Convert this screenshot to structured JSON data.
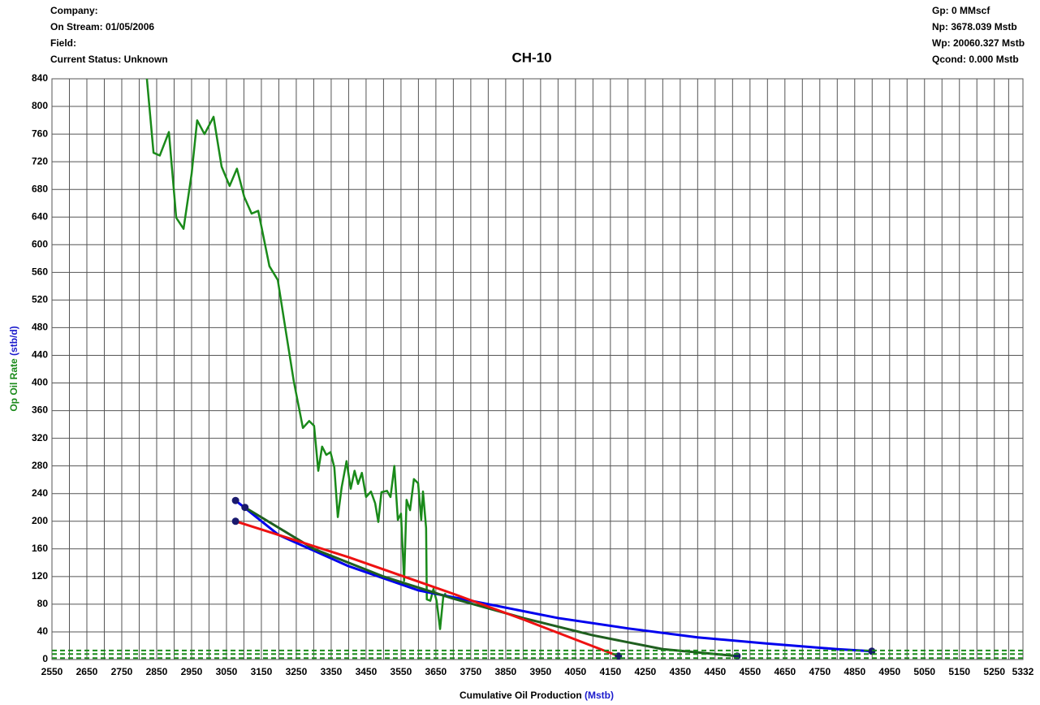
{
  "chart_data": {
    "type": "line",
    "title": "CH-10",
    "info_left": [
      "Company:",
      "On Stream: 01/05/2006",
      "Field:",
      "Current Status: Unknown"
    ],
    "info_right": [
      "Gp: 0 MMscf",
      "Np: 3678.039 Mstb",
      "Wp: 20060.327 Mstb",
      "Qcond: 0.000 Mstb"
    ],
    "ylabel": "Op Oil Rate",
    "ylabel_unit": "(stb/d)",
    "xlabel": "Cumulative Oil Production",
    "xlabel_unit": "(Mstb)",
    "xlim": [
      2550,
      5332
    ],
    "xticks": [
      2550,
      2650,
      2750,
      2850,
      2950,
      3050,
      3150,
      3250,
      3350,
      3450,
      3550,
      3650,
      3750,
      3850,
      3950,
      4050,
      4150,
      4250,
      4350,
      4450,
      4550,
      4650,
      4750,
      4850,
      4950,
      5050,
      5150,
      5250,
      5332
    ],
    "ylim": [
      0,
      840
    ],
    "yticks": [
      0,
      40,
      80,
      120,
      160,
      200,
      240,
      280,
      320,
      360,
      400,
      440,
      480,
      520,
      560,
      600,
      640,
      680,
      720,
      760,
      800,
      840
    ],
    "grid": true,
    "series": [
      {
        "color": "#1a8a1a",
        "width": 2.5,
        "x": [
          2822,
          2841,
          2859,
          2885,
          2906,
          2927,
          2950,
          2966,
          2987,
          3013,
          3036,
          3059,
          3080,
          3101,
          3122,
          3141,
          3173,
          3197,
          3220,
          3243,
          3269,
          3287,
          3301,
          3313,
          3324,
          3336,
          3348,
          3359,
          3369,
          3380,
          3394,
          3406,
          3417,
          3427,
          3438,
          3450,
          3464,
          3476,
          3485,
          3494,
          3510,
          3520,
          3531,
          3541,
          3550,
          3559,
          3566,
          3576,
          3587,
          3599,
          3608,
          3613,
          3622,
          3624,
          3634,
          3643,
          3652,
          3662,
          3671,
          3678
        ],
        "values": [
          840,
          733,
          729,
          763,
          639,
          623,
          702,
          780,
          760,
          785,
          713,
          685,
          710,
          669,
          645,
          649,
          569,
          549,
          475,
          402,
          335,
          345,
          338,
          273,
          308,
          296,
          300,
          278,
          206,
          249,
          287,
          247,
          273,
          254,
          270,
          235,
          243,
          226,
          199,
          242,
          244,
          235,
          280,
          202,
          211,
          114,
          231,
          216,
          261,
          255,
          202,
          243,
          190,
          87,
          85,
          102,
          85,
          44,
          90,
          96
        ]
      },
      {
        "color": "#0000ee",
        "width": 3,
        "endpoint_markers": true,
        "x": [
          3076,
          3200,
          3400,
          3600,
          3800,
          4000,
          4200,
          4400,
          4600,
          4800,
          4899
        ],
        "values": [
          230,
          180,
          135,
          100,
          80,
          60,
          45,
          32,
          23,
          15,
          12
        ]
      },
      {
        "color": "#1f5f1f",
        "width": 3,
        "endpoint_markers": true,
        "x": [
          3103,
          3300,
          3500,
          3700,
          3900,
          4100,
          4300,
          4513
        ],
        "values": [
          220,
          160,
          120,
          88,
          60,
          35,
          15,
          5
        ]
      },
      {
        "color": "#ee1111",
        "width": 3,
        "endpoint_markers": true,
        "x": [
          3076,
          3400,
          3700,
          3900,
          4173
        ],
        "values": [
          200,
          148,
          95,
          58,
          5
        ]
      },
      {
        "color": "#1a8a1a",
        "width": 2,
        "dash": true,
        "x": [
          2550,
          5332
        ],
        "values": [
          13,
          13
        ]
      },
      {
        "color": "#1a8a1a",
        "width": 2,
        "dash": true,
        "x": [
          2550,
          5332
        ],
        "values": [
          8,
          8
        ]
      },
      {
        "color": "#1a8a1a",
        "width": 2,
        "dash": true,
        "x": [
          2550,
          5332
        ],
        "values": [
          2,
          2
        ]
      }
    ],
    "marker_color": "#1a1a6e"
  }
}
